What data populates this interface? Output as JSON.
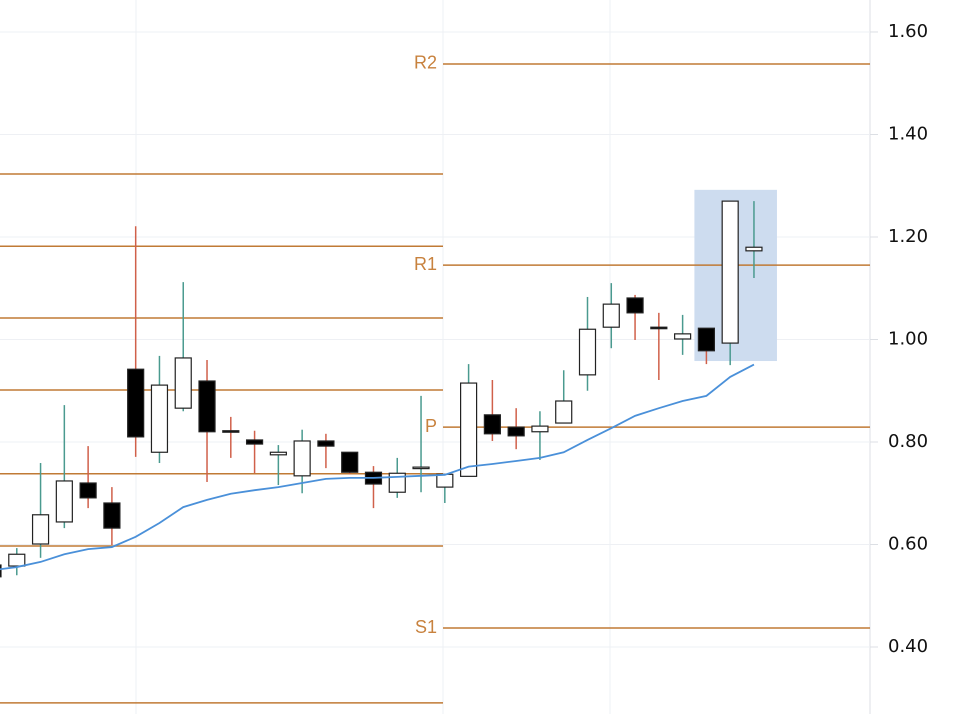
{
  "chart_data": {
    "type": "candlestick",
    "open": [
      0.56,
      0.558,
      0.601,
      0.644,
      0.72,
      0.681,
      0.942,
      0.78,
      0.866,
      0.919,
      0.822,
      0.804,
      0.775,
      0.734,
      0.802,
      0.78,
      0.741,
      0.702,
      0.749,
      0.712,
      0.733,
      0.853,
      0.829,
      0.82,
      0.837,
      0.931,
      1.024,
      1.081,
      1.024,
      1.001,
      1.022,
      0.993,
      1.173
    ],
    "high": [
      0.565,
      0.593,
      0.759,
      0.872,
      0.792,
      0.712,
      1.221,
      0.968,
      1.112,
      0.96,
      0.849,
      0.822,
      0.794,
      0.824,
      0.816,
      0.78,
      0.753,
      0.769,
      0.89,
      0.737,
      0.952,
      0.921,
      0.866,
      0.86,
      0.94,
      1.083,
      1.11,
      1.087,
      1.052,
      1.048,
      1.022,
      1.27,
      1.27
    ],
    "low": [
      0.53,
      0.54,
      0.574,
      0.632,
      0.671,
      0.599,
      0.771,
      0.759,
      0.86,
      0.722,
      0.769,
      0.739,
      0.716,
      0.7,
      0.749,
      0.737,
      0.671,
      0.691,
      0.702,
      0.681,
      0.733,
      0.802,
      0.786,
      0.765,
      0.837,
      0.9,
      0.983,
      0.999,
      0.921,
      0.97,
      0.952,
      0.95,
      1.12
    ],
    "close": [
      0.537,
      0.581,
      0.658,
      0.724,
      0.691,
      0.632,
      0.81,
      0.911,
      0.964,
      0.82,
      0.82,
      0.796,
      0.78,
      0.802,
      0.792,
      0.741,
      0.718,
      0.739,
      0.751,
      0.737,
      0.915,
      0.816,
      0.812,
      0.831,
      0.88,
      1.02,
      1.069,
      1.052,
      1.022,
      1.011,
      0.978,
      1.27,
      1.18
    ],
    "up_color": "#ffffff",
    "down_color": "#000000",
    "up_wick_color": "#4a9a8f",
    "down_wick_color": "#d0604a",
    "moving_average": {
      "color": "#4a90d9",
      "values": [
        0.55,
        0.556,
        0.566,
        0.581,
        0.591,
        0.595,
        0.615,
        0.642,
        0.673,
        0.687,
        0.699,
        0.706,
        0.712,
        0.72,
        0.728,
        0.73,
        0.73,
        0.732,
        0.734,
        0.736,
        0.752,
        0.757,
        0.763,
        0.769,
        0.78,
        0.804,
        0.827,
        0.851,
        0.866,
        0.88,
        0.89,
        0.927,
        0.951
      ]
    },
    "pivot_color": "#c07a35",
    "previous_pivots": [
      1.323,
      1.182,
      1.042,
      0.9015,
      0.738,
      0.597,
      0.291
    ],
    "pivots": {
      "names": [
        "R2",
        "R1",
        "P",
        "S1"
      ],
      "values": [
        1.5376,
        1.145,
        0.829,
        0.437
      ]
    },
    "highlight": {
      "color": "#cddcef",
      "range": [
        0.958,
        1.292
      ]
    },
    "ylim": [
      0.2693,
      1.6624
    ],
    "yticks": [
      {
        "value": 1.6,
        "label": "1.60"
      },
      {
        "value": 1.4,
        "label": "1.40"
      },
      {
        "value": 1.2,
        "label": "1.20"
      },
      {
        "value": 1.0,
        "label": "1.00"
      },
      {
        "value": 0.8,
        "label": "0.80"
      },
      {
        "value": 0.6,
        "label": "0.60"
      },
      {
        "value": 0.4,
        "label": "0.40"
      }
    ],
    "grid": true
  }
}
